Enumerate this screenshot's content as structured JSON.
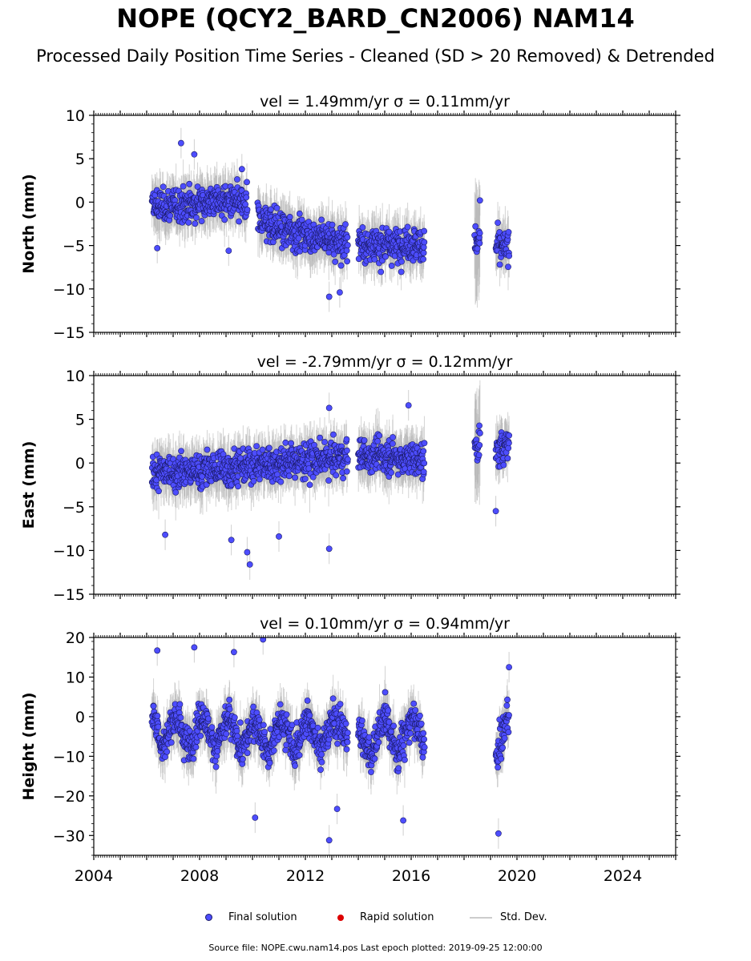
{
  "title": "NOPE (QCY2_BARD_CN2006) NAM14",
  "subtitle": "Processed Daily Position Time Series - Cleaned (SD > 20 Removed) & Detrended",
  "footer": "Source file: NOPE.cwu.nam14.pos  Last epoch plotted: 2019-09-25 12:00:00",
  "legend": {
    "final": "Final solution",
    "rapid": "Rapid solution",
    "stddev": "Std. Dev."
  },
  "colors": {
    "final_fill": "#4d4dff",
    "final_edge": "#1a1a66",
    "rapid": "#dd0000",
    "errorbar": "#b0b0b0"
  },
  "chart_data": [
    {
      "type": "scatter",
      "title": "vel = 1.49mm/yr   σ = 0.11mm/yr",
      "ylabel": "North (mm)",
      "xlim": [
        2004,
        2026
      ],
      "ylim": [
        -15,
        10
      ],
      "yticks": [
        -15,
        -10,
        -5,
        0,
        5,
        10
      ],
      "segments": [
        {
          "x": [
            2006.2,
            2006.8,
            2007.4,
            2008.0,
            2008.6,
            2009.2,
            2009.8
          ],
          "y": [
            -0.5,
            -0.5,
            -0.3,
            0.0,
            0.2,
            0.0,
            -0.5
          ]
        },
        {
          "x": [
            2010.2,
            2010.8,
            2011.4,
            2012.0,
            2012.6,
            2013.1,
            2013.6
          ],
          "y": [
            -2.0,
            -2.8,
            -3.3,
            -3.8,
            -4.2,
            -4.5,
            -4.6
          ]
        },
        {
          "x": [
            2014.0,
            2014.7,
            2015.4,
            2016.0,
            2016.5
          ],
          "y": [
            -4.8,
            -5.0,
            -5.0,
            -4.8,
            -5.0
          ]
        },
        {
          "x": [
            2018.4,
            2018.6
          ],
          "y": [
            -4.5,
            -4.5
          ]
        },
        {
          "x": [
            2019.2,
            2019.7
          ],
          "y": [
            -5.0,
            -5.5
          ]
        }
      ],
      "outliers": [
        {
          "x": 2007.3,
          "y": 6.8
        },
        {
          "x": 2007.8,
          "y": 5.5
        },
        {
          "x": 2009.6,
          "y": 3.8
        },
        {
          "x": 2012.9,
          "y": -10.9
        },
        {
          "x": 2013.3,
          "y": -10.4
        },
        {
          "x": 2018.6,
          "y": 0.2
        },
        {
          "x": 2006.4,
          "y": -5.3
        },
        {
          "x": 2009.1,
          "y": -5.6
        }
      ]
    },
    {
      "type": "scatter",
      "title": "vel = -2.79mm/yr   σ = 0.12mm/yr",
      "ylabel": "East (mm)",
      "xlim": [
        2004,
        2026
      ],
      "ylim": [
        -15,
        10
      ],
      "yticks": [
        -15,
        -10,
        -5,
        0,
        5,
        10
      ],
      "segments": [
        {
          "x": [
            2006.2,
            2007.0,
            2008.0,
            2009.0,
            2010.0,
            2011.0,
            2012.0,
            2013.0,
            2013.6
          ],
          "y": [
            -1.0,
            -1.0,
            -0.8,
            -0.6,
            -0.3,
            0.0,
            0.3,
            0.5,
            0.7
          ]
        },
        {
          "x": [
            2014.0,
            2015.0,
            2016.0,
            2016.5
          ],
          "y": [
            0.8,
            0.8,
            0.5,
            0.4
          ]
        },
        {
          "x": [
            2018.4,
            2018.6
          ],
          "y": [
            2.0,
            2.0
          ]
        },
        {
          "x": [
            2019.2,
            2019.7
          ],
          "y": [
            1.0,
            2.5
          ]
        }
      ],
      "outliers": [
        {
          "x": 2009.8,
          "y": -10.2
        },
        {
          "x": 2009.9,
          "y": -11.6
        },
        {
          "x": 2012.9,
          "y": -9.8
        },
        {
          "x": 2012.9,
          "y": 6.3
        },
        {
          "x": 2015.9,
          "y": 6.6
        },
        {
          "x": 2006.7,
          "y": -8.2
        },
        {
          "x": 2009.2,
          "y": -8.8
        },
        {
          "x": 2011.0,
          "y": -8.4
        },
        {
          "x": 2019.2,
          "y": -5.5
        }
      ]
    },
    {
      "type": "scatter",
      "title": "vel = 0.10mm/yr   σ = 0.94mm/yr",
      "ylabel": "Height (mm)",
      "xlim": [
        2004,
        2026
      ],
      "ylim": [
        -35,
        20
      ],
      "yticks": [
        -30,
        -20,
        -10,
        0,
        10,
        20
      ],
      "xticks": [
        2004,
        2008,
        2012,
        2016,
        2020,
        2024
      ],
      "segments": [
        {
          "x": [
            2006.2,
            2006.6,
            2007.1,
            2007.6,
            2008.1,
            2008.6,
            2009.1,
            2009.6,
            2010.1,
            2010.6,
            2011.1,
            2011.6,
            2012.1,
            2012.6,
            2013.1,
            2013.6
          ],
          "y": [
            2,
            -8,
            1,
            -8,
            1,
            -8,
            0,
            -9,
            0,
            -10,
            0,
            -9,
            0,
            -8,
            0,
            -5
          ]
        },
        {
          "x": [
            2014.0,
            2014.5,
            2015.0,
            2015.5,
            2016.0,
            2016.5
          ],
          "y": [
            -3,
            -10,
            1,
            -10,
            0,
            -7
          ]
        },
        {
          "x": [
            2019.2,
            2019.7
          ],
          "y": [
            -12,
            2
          ]
        }
      ],
      "outliers": [
        {
          "x": 2010.4,
          "y": 19.5
        },
        {
          "x": 2012.9,
          "y": -31.2
        },
        {
          "x": 2010.1,
          "y": -25.5
        },
        {
          "x": 2013.2,
          "y": -23.3
        },
        {
          "x": 2015.7,
          "y": -26.2
        },
        {
          "x": 2019.3,
          "y": -29.5
        },
        {
          "x": 2006.4,
          "y": 16.7
        },
        {
          "x": 2009.3,
          "y": 16.3
        },
        {
          "x": 2007.8,
          "y": 17.5
        },
        {
          "x": 2019.7,
          "y": 12.5
        }
      ]
    }
  ]
}
